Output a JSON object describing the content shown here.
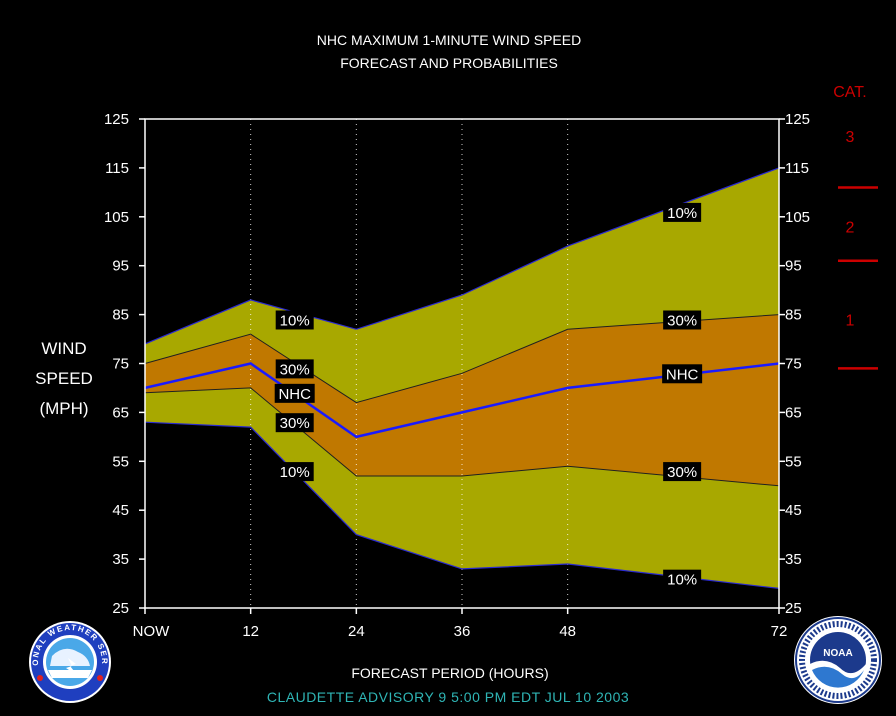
{
  "title_line1": "NHC MAXIMUM 1-MINUTE WIND SPEED",
  "title_line2": "FORECAST AND PROBABILITIES",
  "ylabel": [
    "WIND",
    "SPEED",
    "(MPH)"
  ],
  "xlabel": "FORECAST PERIOD (HOURS)",
  "advisory": "CLAUDETTE    ADVISORY  9  5:00  PM  EDT  JUL  10  2003",
  "category": {
    "header": "CAT.",
    "labels": [
      {
        "text": "3",
        "mph": 121.5
      },
      {
        "text": "2",
        "mph": 103
      },
      {
        "text": "1",
        "mph": 84
      }
    ],
    "thresholds_mph": [
      111,
      96,
      74
    ],
    "color": "#cc0000"
  },
  "colors": {
    "outer_band": "#a8a800",
    "inner_band": "#c07800",
    "nhc_line": "#1a1aff",
    "band_edge": "#202020",
    "lower_edge": "#2a2ad0"
  },
  "icons": [
    "nws-logo-icon",
    "noaa-logo-icon"
  ],
  "logo_text": {
    "nws": "NATIONAL WEATHER SERVICE",
    "noaa": "NOAA"
  },
  "chart_data": {
    "type": "area",
    "x": [
      0,
      12,
      24,
      36,
      48,
      72
    ],
    "x_tick_labels": [
      "NOW",
      "12",
      "24",
      "36",
      "48",
      "72"
    ],
    "ylim": [
      25,
      125
    ],
    "y_ticks": [
      25,
      35,
      45,
      55,
      65,
      75,
      85,
      95,
      105,
      115,
      125
    ],
    "grid": "vertical dotted at 12, 24, 36, 48",
    "series": [
      {
        "name": "10%",
        "values": [
          79,
          88,
          82,
          89,
          99,
          115
        ]
      },
      {
        "name": "30%",
        "values": [
          75,
          81,
          67,
          73,
          82,
          85
        ]
      },
      {
        "name": "NHC",
        "values": [
          70,
          75,
          60,
          65,
          70,
          75
        ]
      },
      {
        "name": "30%",
        "values": [
          69,
          70,
          52,
          52,
          54,
          50
        ]
      },
      {
        "name": "10%",
        "values": [
          63,
          62,
          40,
          33,
          34,
          29
        ]
      }
    ],
    "annotations": [
      {
        "text": "10%",
        "x": 17,
        "y": 84
      },
      {
        "text": "30%",
        "x": 17,
        "y": 74
      },
      {
        "text": "NHC",
        "x": 17,
        "y": 69
      },
      {
        "text": "30%",
        "x": 17,
        "y": 63
      },
      {
        "text": "10%",
        "x": 17,
        "y": 53
      },
      {
        "text": "10%",
        "x": 61,
        "y": 106
      },
      {
        "text": "30%",
        "x": 61,
        "y": 84
      },
      {
        "text": "NHC",
        "x": 61,
        "y": 73
      },
      {
        "text": "30%",
        "x": 61,
        "y": 53
      },
      {
        "text": "10%",
        "x": 61,
        "y": 31
      }
    ]
  }
}
